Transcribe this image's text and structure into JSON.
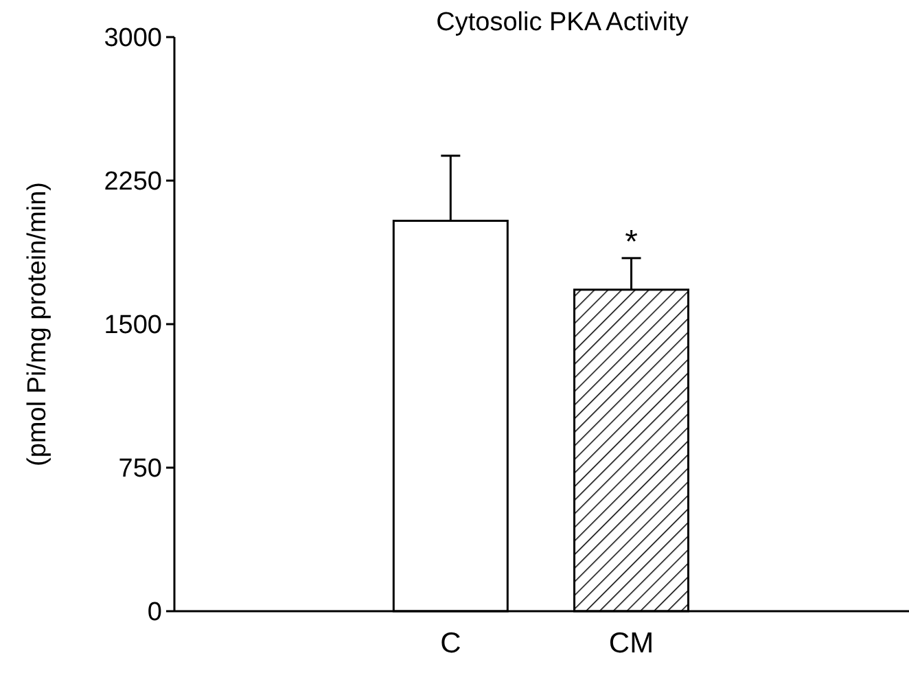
{
  "chart_data": {
    "type": "bar",
    "title": "Cytosolic PKA Activity",
    "ylabel": "(pmol Pi/mg protein/min)",
    "categories": [
      "C",
      "CM"
    ],
    "values": [
      2040,
      1680
    ],
    "colors": [
      "#ffffff",
      "#000000"
    ],
    "errors": [
      [
        2040,
        2380
      ],
      [
        1680,
        1845
      ]
    ],
    "annotations": [
      {
        "text": "*",
        "x": "CM",
        "y": 1845
      }
    ],
    "ylim": [
      0,
      3000
    ],
    "yticks": [
      0,
      750,
      1500,
      2250,
      3000
    ],
    "grid": false
  }
}
